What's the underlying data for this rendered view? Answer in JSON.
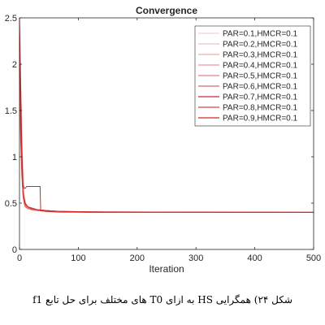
{
  "caption": "شکل ۲۴) همگرایی HS به ازای T0 های مختلف برای حل تابع f1",
  "chart_data": {
    "type": "line",
    "title": "Convergence",
    "xlabel": "Iteration",
    "ylabel": "",
    "xlim": [
      0,
      500
    ],
    "ylim": [
      0,
      2.5
    ],
    "xticks": [
      0,
      100,
      200,
      300,
      400,
      500
    ],
    "xtick_labels": [
      "0",
      "100",
      "200",
      "300",
      "400",
      "500"
    ],
    "yticks": [
      0,
      0.5,
      1,
      1.5,
      2,
      2.5
    ],
    "ytick_labels": [
      "0",
      "0.5",
      "1",
      "1.5",
      "2",
      "2.5"
    ],
    "grid": false,
    "legend_position": "top-right",
    "series": [
      {
        "name": "PAR=0.1,HMCR=0.1",
        "color": "#f7d0d0",
        "x": [
          0,
          2,
          4,
          6,
          8,
          10,
          14,
          20,
          30,
          45,
          70,
          120,
          500
        ],
        "y": [
          2.45,
          1.9,
          1.3,
          0.9,
          0.62,
          0.5,
          0.47,
          0.45,
          0.43,
          0.42,
          0.41,
          0.405,
          0.4
        ]
      },
      {
        "name": "PAR=0.2,HMCR=0.1",
        "color": "#f2c0c0",
        "x": [
          0,
          2,
          4,
          6,
          8,
          10,
          14,
          20,
          30,
          45,
          70,
          120,
          500
        ],
        "y": [
          2.4,
          1.7,
          1.1,
          0.75,
          0.55,
          0.48,
          0.46,
          0.44,
          0.43,
          0.42,
          0.41,
          0.405,
          0.4
        ]
      },
      {
        "name": "PAR=0.3,HMCR=0.1",
        "color": "#edaeae",
        "x": [
          0,
          2,
          4,
          6,
          8,
          10,
          14,
          20,
          30,
          45,
          70,
          120,
          500
        ],
        "y": [
          2.3,
          1.6,
          1.0,
          0.7,
          0.52,
          0.47,
          0.45,
          0.44,
          0.43,
          0.41,
          0.41,
          0.4,
          0.4
        ]
      },
      {
        "name": "PAR=0.4,HMCR=0.1",
        "color": "#e89a9a",
        "x": [
          0,
          2,
          4,
          6,
          8,
          10,
          14,
          20,
          30,
          45,
          70,
          120,
          500
        ],
        "y": [
          2.2,
          1.5,
          0.95,
          0.65,
          0.5,
          0.46,
          0.45,
          0.43,
          0.42,
          0.41,
          0.41,
          0.4,
          0.4
        ]
      },
      {
        "name": "PAR=0.5,HMCR=0.1",
        "color": "#e08585",
        "x": [
          0,
          2,
          4,
          6,
          8,
          10,
          14,
          20,
          30,
          45,
          70,
          120,
          500
        ],
        "y": [
          2.1,
          1.4,
          0.9,
          0.6,
          0.5,
          0.46,
          0.45,
          0.43,
          0.42,
          0.41,
          0.41,
          0.4,
          0.4
        ]
      },
      {
        "name": "PAR=0.6,HMCR=0.1",
        "color": "#d86a6a",
        "x": [
          0,
          2,
          4,
          6,
          8,
          10,
          14,
          20,
          30,
          45,
          70,
          120,
          500
        ],
        "y": [
          2.0,
          1.3,
          0.85,
          0.58,
          0.49,
          0.46,
          0.44,
          0.43,
          0.42,
          0.41,
          0.4,
          0.4,
          0.4
        ]
      },
      {
        "name": "PAR=0.7,HMCR=0.1",
        "color": "#cc2a2a",
        "x": [
          0,
          2,
          4,
          6,
          8,
          10,
          12,
          14,
          20,
          35,
          36,
          50,
          80,
          120,
          500
        ],
        "y": [
          2.5,
          1.8,
          1.1,
          0.7,
          0.66,
          0.66,
          0.68,
          0.68,
          0.68,
          0.68,
          0.42,
          0.41,
          0.41,
          0.405,
          0.4
        ]
      },
      {
        "name": "PAR=0.8,HMCR=0.1",
        "color": "#d44848",
        "x": [
          0,
          2,
          4,
          6,
          8,
          10,
          14,
          20,
          30,
          45,
          70,
          120,
          500
        ],
        "y": [
          2.0,
          1.2,
          0.8,
          0.6,
          0.52,
          0.48,
          0.46,
          0.45,
          0.43,
          0.42,
          0.41,
          0.4,
          0.4
        ]
      },
      {
        "name": "PAR=0.9,HMCR=0.1",
        "color": "#d42828",
        "x": [
          0,
          2,
          4,
          6,
          8,
          10,
          14,
          20,
          30,
          45,
          70,
          120,
          500
        ],
        "y": [
          2.3,
          1.5,
          0.9,
          0.62,
          0.55,
          0.5,
          0.46,
          0.44,
          0.43,
          0.42,
          0.41,
          0.405,
          0.4
        ]
      }
    ]
  }
}
